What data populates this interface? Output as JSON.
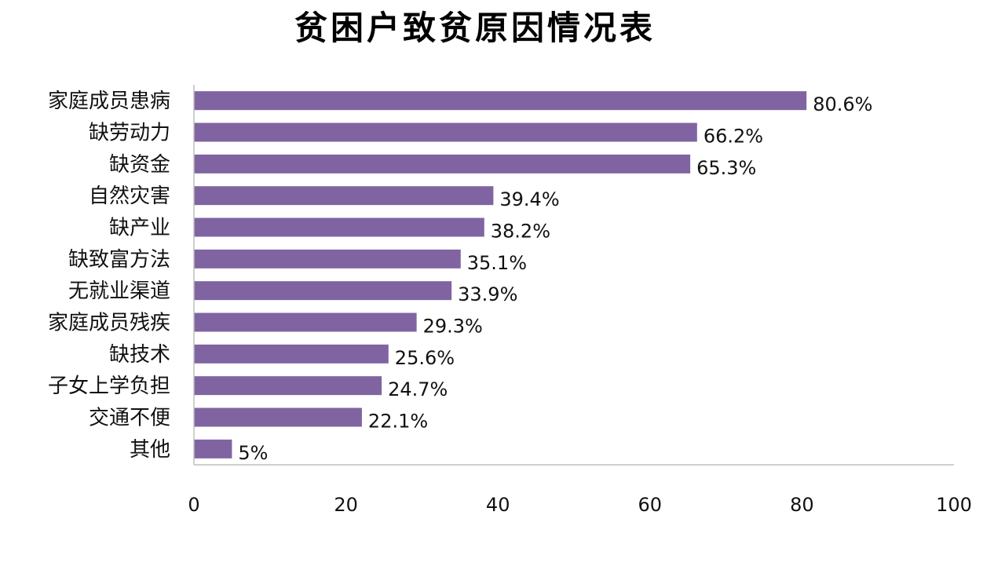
{
  "chart_data": {
    "type": "bar",
    "orientation": "horizontal",
    "title": "贫困户致贫原因情况表",
    "categories": [
      "家庭成员患病",
      "缺劳动力",
      "缺资金",
      "自然灾害",
      "缺产业",
      "缺致富方法",
      "无就业渠道",
      "家庭成员残疾",
      "缺技术",
      "子女上学负担",
      "交通不便",
      "其他"
    ],
    "values": [
      80.6,
      66.2,
      65.3,
      39.4,
      38.2,
      35.1,
      33.9,
      29.3,
      25.6,
      24.7,
      22.1,
      5
    ],
    "value_labels": [
      "80.6%",
      "66.2%",
      "65.3%",
      "39.4%",
      "38.2%",
      "35.1%",
      "33.9%",
      "29.3%",
      "25.6%",
      "24.7%",
      "22.1%",
      "5%"
    ],
    "xlim": [
      0,
      100
    ],
    "xticks": [
      "0",
      "20",
      "40",
      "60",
      "80",
      "100"
    ],
    "xtick_values": [
      0,
      20,
      40,
      60,
      80,
      100
    ],
    "bar_color": "#8064a2",
    "grid": false,
    "legend": "none"
  }
}
